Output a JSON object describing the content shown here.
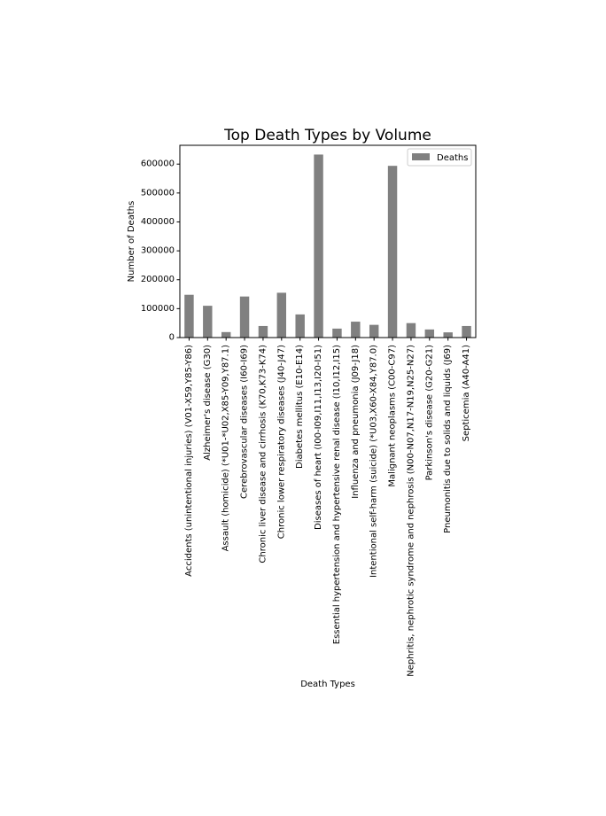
{
  "chart_data": {
    "type": "bar",
    "title": "Top Death Types by Volume",
    "xlabel": "Death Types",
    "ylabel": "Number of Deaths",
    "ylim": [
      0,
      665000
    ],
    "yticks": [
      0,
      100000,
      200000,
      300000,
      400000,
      500000,
      600000
    ],
    "grid": false,
    "legend_position": "top-right",
    "bar_color": "#808080",
    "categories": [
      "Accidents (unintentional injuries) (V01-X59,Y85-Y86)",
      "Alzheimer's disease (G30)",
      "Assault (homicide) (*U01-*U02,X85-Y09,Y87.1)",
      "Cerebrovascular diseases (I60-I69)",
      "Chronic liver disease and cirrhosis (K70,K73-K74)",
      "Chronic lower respiratory diseases (J40-J47)",
      "Diabetes mellitus (E10-E14)",
      "Diseases of heart (I00-I09,I11,I13,I20-I51)",
      "Essential hypertension and hypertensive renal disease (I10,I12,I15)",
      "Influenza and pneumonia (J09-J18)",
      "Intentional self-harm (suicide) (*U03,X60-X84,Y87.0)",
      "Malignant neoplasms (C00-C97)",
      "Nephritis, nephrotic syndrome and nephrosis (N00-N07,N17-N19,N25-N27)",
      "Parkinson's disease (G20-G21)",
      "Pneumonitis due to solids and liquids (J69)",
      "Septicemia (A40-A41)"
    ],
    "series": [
      {
        "name": "Deaths",
        "values": [
          148000,
          110000,
          19000,
          142000,
          40000,
          155000,
          80000,
          633000,
          31000,
          55000,
          44000,
          594000,
          50000,
          28000,
          18000,
          40000
        ]
      }
    ]
  }
}
